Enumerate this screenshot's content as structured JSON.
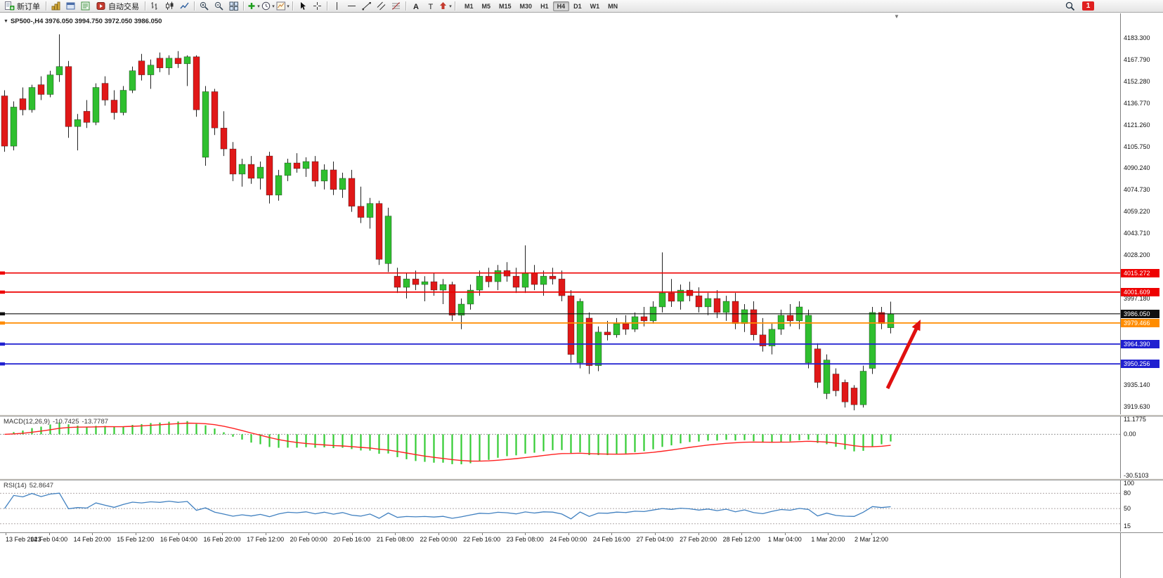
{
  "window": {
    "title_marker": "▼",
    "symbol_header": "SP500-,H4 3976.050 3994.750 3972.050 3986.050"
  },
  "icons": {
    "shift_marker_glyph": "▼",
    "caret_glyph": "▾"
  },
  "toolbar": {
    "items": [
      {
        "t": "btn",
        "name": "new-order-button",
        "icon": "new-order-icon",
        "label": "新订单"
      },
      {
        "t": "sep"
      },
      {
        "t": "ico",
        "name": "charts-button",
        "icon": "charts-icon"
      },
      {
        "t": "ico",
        "name": "profiles-button",
        "icon": "profiles-icon"
      },
      {
        "t": "ico",
        "name": "market-watch-button",
        "icon": "market-watch-icon"
      },
      {
        "t": "btn",
        "name": "auto-trading-button",
        "icon": "autotrading-icon",
        "label": "自动交易"
      },
      {
        "t": "sep"
      },
      {
        "t": "ico",
        "name": "bar-chart-button",
        "icon": "bar-chart-icon"
      },
      {
        "t": "ico",
        "name": "candlestick-chart-button",
        "icon": "candlestick-icon"
      },
      {
        "t": "ico",
        "name": "line-chart-button",
        "icon": "line-chart-icon"
      },
      {
        "t": "sep"
      },
      {
        "t": "ico",
        "name": "zoom-in-button",
        "icon": "zoom-in-icon"
      },
      {
        "t": "ico",
        "name": "zoom-out-button",
        "icon": "zoom-out-icon"
      },
      {
        "t": "ico",
        "name": "tile-windows-button",
        "icon": "tile-windows-icon"
      },
      {
        "t": "sep"
      },
      {
        "t": "drop",
        "name": "indicators-button",
        "icon": "indicators-icon"
      },
      {
        "t": "drop",
        "name": "periods-button",
        "icon": "periods-icon"
      },
      {
        "t": "drop",
        "name": "templates-button",
        "icon": "templates-icon"
      },
      {
        "t": "sep"
      },
      {
        "t": "ico",
        "name": "cursor-button",
        "icon": "cursor-icon"
      },
      {
        "t": "ico",
        "name": "crosshair-button",
        "icon": "crosshair-icon"
      },
      {
        "t": "sep"
      },
      {
        "t": "ico",
        "name": "vertical-line-button",
        "icon": "vertical-line-icon"
      },
      {
        "t": "ico",
        "name": "horizontal-line-button",
        "icon": "horizontal-line-icon"
      },
      {
        "t": "ico",
        "name": "trendline-button",
        "icon": "trendline-icon"
      },
      {
        "t": "ico",
        "name": "channel-button",
        "icon": "channel-icon"
      },
      {
        "t": "ico",
        "name": "fibonacci-button",
        "icon": "fibonacci-icon"
      },
      {
        "t": "sep"
      },
      {
        "t": "ico",
        "name": "text-button",
        "icon": "text-icon"
      },
      {
        "t": "ico",
        "name": "text-label-button",
        "icon": "text-label-icon"
      },
      {
        "t": "drop",
        "name": "arrows-button",
        "icon": "arrows-icon"
      },
      {
        "t": "sep"
      }
    ],
    "timeframes": [
      "M1",
      "M5",
      "M15",
      "M30",
      "H1",
      "H4",
      "D1",
      "W1",
      "MN"
    ],
    "active_timeframe": "H4",
    "notification_badge": "1"
  },
  "chart_data": {
    "type": "candlestick",
    "symbol": "SP500-",
    "period": "H4",
    "ohlc_display": {
      "open": "3976.050",
      "high": "3994.750",
      "low": "3972.050",
      "close": "3986.050"
    },
    "up_color": "#2fbf2f",
    "down_color": "#e01818",
    "wick_color": "#222222",
    "price_axis_range": [
      3912,
      4194
    ],
    "price_axis_labels": [
      "4183.300",
      "4167.790",
      "4152.280",
      "4136.770",
      "4121.260",
      "4105.750",
      "4090.240",
      "4074.730",
      "4059.220",
      "4043.710",
      "4028.200",
      "4012.690",
      "3997.180",
      "3981.670",
      "3966.160",
      "3950.650",
      "3935.140",
      "3919.630"
    ],
    "price_levels": [
      {
        "name": "resistance-1",
        "price": 4015.272,
        "label": "4015.272",
        "color": "#ee0000",
        "badge_text_color": "#ffffff"
      },
      {
        "name": "resistance-2",
        "price": 4001.609,
        "label": "4001.609",
        "color": "#ee0000",
        "badge_text_color": "#ffffff"
      },
      {
        "name": "current-bid",
        "price": 3986.05,
        "label": "3986.050",
        "color": "#101010",
        "badge_text_color": "#ffffff"
      },
      {
        "name": "pivot",
        "price": 3979.466,
        "label": "3979.466",
        "color": "#ff8c00",
        "badge_text_color": "#ffffff"
      },
      {
        "name": "support-1",
        "price": 3964.39,
        "label": "3964.390",
        "color": "#2020d0",
        "badge_text_color": "#ffffff"
      },
      {
        "name": "support-2",
        "price": 3950.256,
        "label": "3950.256",
        "color": "#2020d0",
        "badge_text_color": "#ffffff"
      }
    ],
    "candles_ohlc": [
      [
        4142,
        4146,
        4102,
        4106
      ],
      [
        4106,
        4138,
        4103,
        4134
      ],
      [
        4140,
        4148,
        4128,
        4132
      ],
      [
        4132,
        4150,
        4130,
        4148
      ],
      [
        4150,
        4156,
        4139,
        4143
      ],
      [
        4143,
        4160,
        4141,
        4157
      ],
      [
        4157,
        4186,
        4152,
        4163
      ],
      [
        4163,
        4167,
        4112,
        4120
      ],
      [
        4120,
        4129,
        4103,
        4125
      ],
      [
        4131,
        4139,
        4119,
        4123
      ],
      [
        4123,
        4151,
        4121,
        4148
      ],
      [
        4151,
        4156,
        4135,
        4139
      ],
      [
        4139,
        4146,
        4125,
        4130
      ],
      [
        4130,
        4149,
        4128,
        4146
      ],
      [
        4146,
        4163,
        4144,
        4160
      ],
      [
        4167,
        4172,
        4153,
        4157
      ],
      [
        4157,
        4168,
        4147,
        4164
      ],
      [
        4169,
        4173,
        4159,
        4162
      ],
      [
        4162,
        4171,
        4157,
        4169
      ],
      [
        4169,
        4174,
        4162,
        4165
      ],
      [
        4165,
        4171,
        4149,
        4170
      ],
      [
        4170,
        4171,
        4127,
        4132
      ],
      [
        4098,
        4149,
        4092,
        4145
      ],
      [
        4145,
        4147,
        4114,
        4119
      ],
      [
        4119,
        4131,
        4099,
        4104
      ],
      [
        4104,
        4109,
        4081,
        4086
      ],
      [
        4086,
        4097,
        4077,
        4093
      ],
      [
        4093,
        4099,
        4079,
        4083
      ],
      [
        4083,
        4095,
        4075,
        4091
      ],
      [
        4099,
        4102,
        4065,
        4071
      ],
      [
        4071,
        4089,
        4067,
        4085
      ],
      [
        4085,
        4097,
        4081,
        4094
      ],
      [
        4094,
        4101,
        4087,
        4090
      ],
      [
        4090,
        4098,
        4084,
        4095
      ],
      [
        4095,
        4099,
        4077,
        4081
      ],
      [
        4081,
        4093,
        4075,
        4089
      ],
      [
        4089,
        4095,
        4071,
        4075
      ],
      [
        4075,
        4087,
        4069,
        4083
      ],
      [
        4083,
        4089,
        4059,
        4063
      ],
      [
        4063,
        4077,
        4051,
        4055
      ],
      [
        4055,
        4069,
        4047,
        4065
      ],
      [
        4065,
        4067,
        4021,
        4025
      ],
      [
        4022,
        4062,
        4016,
        4056
      ],
      [
        4013,
        4019,
        4001,
        4005
      ],
      [
        4005,
        4015,
        3997,
        4011
      ],
      [
        4011,
        4017,
        4003,
        4007
      ],
      [
        4007,
        4013,
        3995,
        4009
      ],
      [
        4009,
        4015,
        3999,
        4003
      ],
      [
        4003,
        4011,
        3993,
        4007
      ],
      [
        4007,
        4009,
        3981,
        3985
      ],
      [
        3985,
        3997,
        3975,
        3993
      ],
      [
        3993,
        4007,
        3989,
        4003
      ],
      [
        4003,
        4017,
        3999,
        4013
      ],
      [
        4013,
        4019,
        4005,
        4009
      ],
      [
        4009,
        4021,
        4003,
        4017
      ],
      [
        4017,
        4023,
        4009,
        4013
      ],
      [
        4013,
        4019,
        4001,
        4005
      ],
      [
        4005,
        4035,
        4001,
        4015
      ],
      [
        4015,
        4021,
        4003,
        4007
      ],
      [
        4007,
        4017,
        3999,
        4013
      ],
      [
        4013,
        4019,
        4007,
        4011
      ],
      [
        4011,
        4017,
        3995,
        3999
      ],
      [
        3999,
        4003,
        3951,
        3957
      ],
      [
        3951,
        3997,
        3947,
        3995
      ],
      [
        3983,
        3987,
        3943,
        3949
      ],
      [
        3949,
        3977,
        3945,
        3973
      ],
      [
        3973,
        3981,
        3967,
        3971
      ],
      [
        3971,
        3983,
        3969,
        3979
      ],
      [
        3979,
        3985,
        3971,
        3975
      ],
      [
        3975,
        3987,
        3973,
        3984
      ],
      [
        3984,
        3991,
        3977,
        3981
      ],
      [
        3981,
        3995,
        3979,
        3991
      ],
      [
        3991,
        4030,
        3987,
        4001
      ],
      [
        4001,
        4011,
        3991,
        3995
      ],
      [
        3995,
        4007,
        3989,
        4003
      ],
      [
        4003,
        4009,
        3995,
        3999
      ],
      [
        3999,
        4005,
        3987,
        3991
      ],
      [
        3991,
        4001,
        3985,
        3997
      ],
      [
        3997,
        4003,
        3983,
        3987
      ],
      [
        3987,
        3999,
        3981,
        3995
      ],
      [
        3995,
        4001,
        3975,
        3979
      ],
      [
        3979,
        3993,
        3973,
        3989
      ],
      [
        3989,
        3995,
        3967,
        3971
      ],
      [
        3971,
        3983,
        3959,
        3963
      ],
      [
        3963,
        3979,
        3957,
        3975
      ],
      [
        3975,
        3989,
        3971,
        3985
      ],
      [
        3985,
        3993,
        3977,
        3981
      ],
      [
        3981,
        3995,
        3975,
        3991
      ],
      [
        3951,
        3989,
        3947,
        3985
      ],
      [
        3961,
        3965,
        3933,
        3937
      ],
      [
        3929,
        3957,
        3925,
        3953
      ],
      [
        3943,
        3947,
        3927,
        3931
      ],
      [
        3937,
        3939,
        3919,
        3923
      ],
      [
        3933,
        3935,
        3917,
        3921
      ],
      [
        3921,
        3949,
        3919,
        3945
      ],
      [
        3947,
        3991,
        3943,
        3987
      ],
      [
        3987,
        3991,
        3975,
        3979
      ],
      [
        3976.05,
        3994.75,
        3972.05,
        3986.05
      ]
    ],
    "time_axis_labels": [
      "13 Feb 2023",
      "14 Feb 04:00",
      "14 Feb 20:00",
      "15 Feb 12:00",
      "16 Feb 04:00",
      "16 Feb 20:00",
      "17 Feb 12:00",
      "20 Feb 00:00",
      "20 Feb 16:00",
      "21 Feb 08:00",
      "22 Feb 00:00",
      "22 Feb 16:00",
      "23 Feb 08:00",
      "24 Feb 00:00",
      "24 Feb 16:00",
      "27 Feb 04:00",
      "27 Feb 20:00",
      "28 Feb 12:00",
      "1 Mar 04:00",
      "1 Mar 20:00",
      "2 Mar 12:00"
    ],
    "annotation_arrow": {
      "color": "#e01010",
      "direction": "up"
    }
  },
  "macd": {
    "label": "MACD(12,26,9)",
    "value_main": "-10.7425",
    "value_signal": "-13.7787",
    "axis_labels": [
      "11.1775",
      "0.00",
      "-30.5103"
    ],
    "axis_max": 11.1775,
    "axis_min": -30.5103,
    "histogram_color": "#33cc33",
    "signal_color": "#ff2020"
  },
  "rsi": {
    "label": "RSI(14)",
    "value": "52.8647",
    "axis_labels": [
      "100",
      "80",
      "50",
      "15"
    ],
    "levels": [
      80,
      50,
      20
    ],
    "line_color": "#4080c0"
  }
}
